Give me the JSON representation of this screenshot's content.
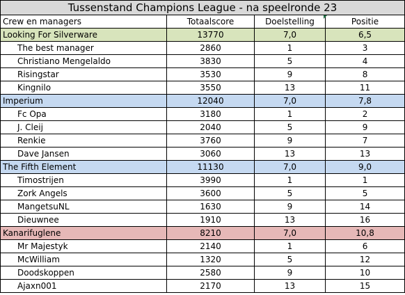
{
  "title": "Tussenstand Champions League - na speelronde 23",
  "headers": [
    "Crew en managers",
    "Totaalscore",
    "Doelstelling",
    "Positie"
  ],
  "teams": [
    {
      "name": "Looking For Silverware",
      "score": "13770",
      "goal": "7,0",
      "position": "6,5",
      "color": "#d8e4bc",
      "managers": [
        {
          "name": "The best manager",
          "score": "2860",
          "goal": "1",
          "position": "3"
        },
        {
          "name": "Christiano Mengelaldo",
          "score": "3830",
          "goal": "5",
          "position": "4"
        },
        {
          "name": "Risingstar",
          "score": "3530",
          "goal": "9",
          "position": "8"
        },
        {
          "name": "Kingnilo",
          "score": "3550",
          "goal": "13",
          "position": "11"
        }
      ]
    },
    {
      "name": "Imperium",
      "score": "12040",
      "goal": "7,0",
      "position": "7,8",
      "color": "#c5d9f1",
      "managers": [
        {
          "name": "Fc Opa",
          "score": "3180",
          "goal": "1",
          "position": "2"
        },
        {
          "name": "J. Cleij",
          "score": "2040",
          "goal": "5",
          "position": "9"
        },
        {
          "name": "Renkie",
          "score": "3760",
          "goal": "9",
          "position": "7"
        },
        {
          "name": "Dave Jansen",
          "score": "3060",
          "goal": "13",
          "position": "13"
        }
      ]
    },
    {
      "name": "The Fifth Element",
      "score": "11130",
      "goal": "7,0",
      "position": "9,0",
      "color": "#c5d9f1",
      "managers": [
        {
          "name": "Timostrijen",
          "score": "3990",
          "goal": "1",
          "position": "1"
        },
        {
          "name": "Zork Angels",
          "score": "3600",
          "goal": "5",
          "position": "5"
        },
        {
          "name": "MangetsuNL",
          "score": "1630",
          "goal": "9",
          "position": "14"
        },
        {
          "name": "Dieuwnee",
          "score": "1910",
          "goal": "13",
          "position": "16"
        }
      ]
    },
    {
      "name": "Kanarifuglene",
      "score": "8210",
      "goal": "7,0",
      "position": "10,8",
      "color": "#e6b8b7",
      "managers": [
        {
          "name": "Mr Majestyk",
          "score": "2140",
          "goal": "1",
          "position": "6"
        },
        {
          "name": "McWilliam",
          "score": "1320",
          "goal": "5",
          "position": "12"
        },
        {
          "name": "Doodskoppen",
          "score": "2580",
          "goal": "9",
          "position": "10"
        },
        {
          "name": "Ajaxn001",
          "score": "2170",
          "goal": "13",
          "position": "15"
        }
      ]
    }
  ]
}
